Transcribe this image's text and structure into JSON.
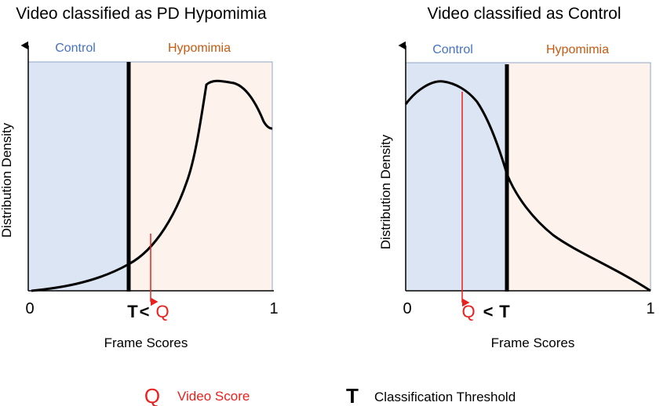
{
  "colors": {
    "control_region": "#dbe5f4",
    "hypomimia_region": "#fdf3ec",
    "control_label": "#4472c4",
    "hypomimia_label": "#c55a11",
    "video_score": "#e8211e",
    "threshold": "#000000",
    "frame_border": "#8fa6c4"
  },
  "panels": [
    {
      "title": "Video classified as PD Hypomimia",
      "region_left_label": "Control",
      "region_right_label": "Hypomimia",
      "ylabel": "Distribution Density",
      "xlabel": "Frame Scores",
      "tick_min": "0",
      "tick_max": "1",
      "relation": {
        "first": "T",
        "op": "<",
        "second": "Q"
      },
      "threshold": 0.41,
      "video_score": 0.5
    },
    {
      "title": "Video classified as Control",
      "region_left_label": "Control",
      "region_right_label": "Hypomimia",
      "ylabel": "Distribution Density",
      "xlabel": "Frame Scores",
      "tick_min": "0",
      "tick_max": "1",
      "relation": {
        "first": "Q",
        "op": "<",
        "second": "T"
      },
      "threshold": 0.41,
      "video_score": 0.23
    }
  ],
  "legend": {
    "q_symbol": "Q",
    "q_text": "Video Score",
    "t_symbol": "T",
    "t_text": "Classification Threshold"
  }
}
